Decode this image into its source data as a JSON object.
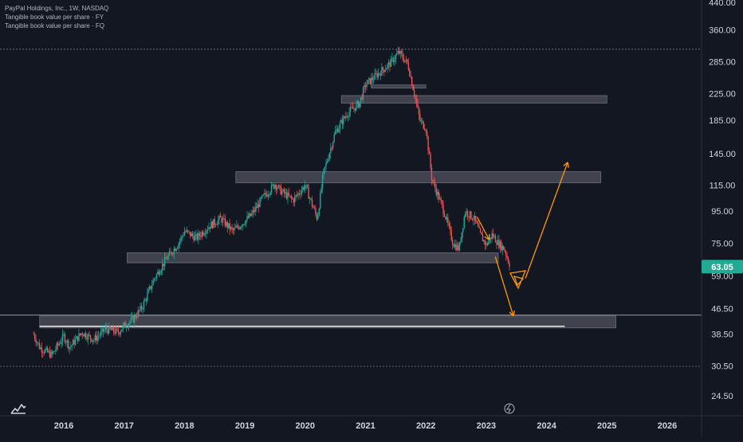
{
  "header": {
    "symbol_line": "PayPal Holdings, Inc., 1W, NASDAQ",
    "indicators": [
      "Tangible book value per share · FY",
      "Tangible book value per share · FQ"
    ]
  },
  "price_badge": {
    "value": "63.05",
    "color": "#22ab94"
  },
  "colors": {
    "background": "#131722",
    "up": "#26a69a",
    "down": "#ef5350",
    "zone_fill": "#787b86",
    "annotation": "#ff9800",
    "axis_text": "#d1d4dc"
  },
  "chart_data": {
    "type": "candlestick",
    "title": "PayPal Holdings, Inc., 1W, NASDAQ",
    "y_scale": "log",
    "y_ticks": [
      "440.00",
      "360.00",
      "285.00",
      "225.00",
      "185.00",
      "145.00",
      "115.00",
      "95.00",
      "75.00",
      "59.00",
      "46.50",
      "38.50",
      "30.50",
      "24.50"
    ],
    "x_ticks": [
      "2016",
      "2017",
      "2018",
      "2019",
      "2020",
      "2021",
      "2022",
      "2023",
      "2024",
      "2025",
      "2026"
    ],
    "xlim": [
      2015.35,
      2026.85
    ],
    "ylim": [
      21.5,
      450
    ],
    "last_price": 63.05,
    "price_path": [
      [
        2015.5,
        38.5
      ],
      [
        2015.6,
        35
      ],
      [
        2015.8,
        33
      ],
      [
        2016.0,
        38
      ],
      [
        2016.1,
        35
      ],
      [
        2016.3,
        39
      ],
      [
        2016.5,
        37
      ],
      [
        2016.7,
        40
      ],
      [
        2016.9,
        39
      ],
      [
        2017.0,
        41
      ],
      [
        2017.15,
        43
      ],
      [
        2017.3,
        47
      ],
      [
        2017.5,
        58
      ],
      [
        2017.7,
        67
      ],
      [
        2017.9,
        75
      ],
      [
        2018.0,
        82
      ],
      [
        2018.2,
        78
      ],
      [
        2018.4,
        85
      ],
      [
        2018.6,
        90
      ],
      [
        2018.8,
        82
      ],
      [
        2018.9,
        85
      ],
      [
        2019.1,
        92
      ],
      [
        2019.3,
        105
      ],
      [
        2019.5,
        116
      ],
      [
        2019.6,
        110
      ],
      [
        2019.8,
        103
      ],
      [
        2020.0,
        115
      ],
      [
        2020.2,
        90
      ],
      [
        2020.3,
        125
      ],
      [
        2020.5,
        170
      ],
      [
        2020.7,
        195
      ],
      [
        2020.9,
        210
      ],
      [
        2021.0,
        240
      ],
      [
        2021.2,
        260
      ],
      [
        2021.4,
        280
      ],
      [
        2021.55,
        305
      ],
      [
        2021.7,
        280
      ],
      [
        2021.8,
        230
      ],
      [
        2021.9,
        185
      ],
      [
        2022.0,
        175
      ],
      [
        2022.1,
        120
      ],
      [
        2022.3,
        95
      ],
      [
        2022.45,
        75
      ],
      [
        2022.55,
        72
      ],
      [
        2022.65,
        95
      ],
      [
        2022.8,
        90
      ],
      [
        2022.9,
        80
      ],
      [
        2023.0,
        74
      ],
      [
        2023.1,
        80
      ],
      [
        2023.2,
        75
      ],
      [
        2023.3,
        72
      ],
      [
        2023.4,
        63.05
      ]
    ],
    "zones": [
      {
        "x0": 2021.1,
        "x1": 2022.0,
        "y0": 236,
        "y1": 240
      },
      {
        "x0": 2020.6,
        "x1": 2025.0,
        "y0": 210,
        "y1": 222
      },
      {
        "x0": 2018.85,
        "x1": 2024.9,
        "y0": 117,
        "y1": 127
      },
      {
        "x0": 2017.05,
        "x1": 2023.2,
        "y0": 65,
        "y1": 70
      },
      {
        "x0": 2015.6,
        "x1": 2025.15,
        "y0": 40.3,
        "y1": 44
      }
    ],
    "horizontal_lines": [
      312,
      44.3,
      30.4
    ],
    "support_line": {
      "x0": 2015.6,
      "x1": 2024.3,
      "y": 40.8
    },
    "annotations": [
      {
        "kind": "arrow",
        "points": [
          [
            2022.85,
            91
          ],
          [
            2023.05,
            77
          ]
        ]
      },
      {
        "kind": "arrow",
        "points": [
          [
            2023.15,
            68
          ],
          [
            2023.45,
            44
          ]
        ]
      },
      {
        "kind": "arrow",
        "points": [
          [
            2023.65,
            58
          ],
          [
            2024.35,
            136
          ]
        ]
      }
    ]
  }
}
